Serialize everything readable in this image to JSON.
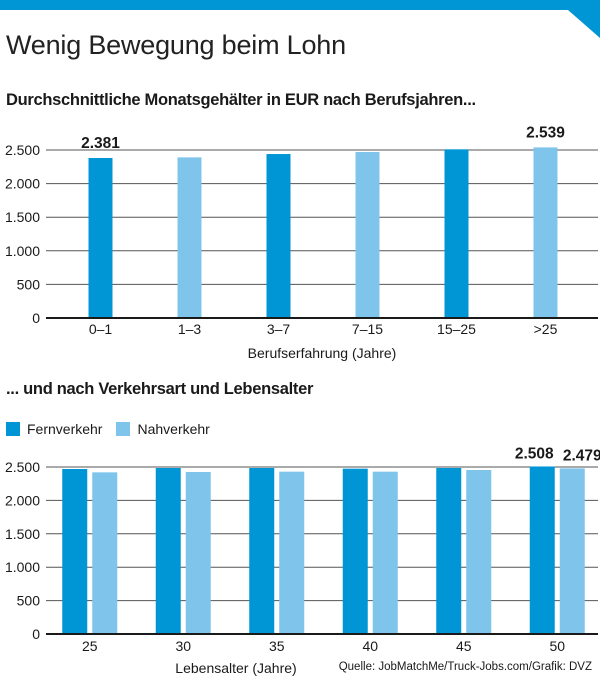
{
  "header": {
    "title": "Wenig Bewegung beim Lohn",
    "accent_color": "#0096d6"
  },
  "colors": {
    "dark_blue": "#0096d6",
    "light_blue": "#7fc4ea",
    "axis": "#1a1a1a"
  },
  "chart_data": [
    {
      "type": "bar",
      "title": "Durchschnittliche Monatsgehälter in EUR nach Berufsjahren...",
      "categories": [
        "0–1",
        "1–3",
        "3–7",
        "7–15",
        "15–25",
        ">25"
      ],
      "values": [
        2381,
        2390,
        2440,
        2470,
        2510,
        2539
      ],
      "bar_colors": [
        "dark",
        "light",
        "dark",
        "light",
        "dark",
        "light"
      ],
      "data_labels": [
        {
          "index": 0,
          "text": "2.381"
        },
        {
          "index": 5,
          "text": "2.539"
        }
      ],
      "xlabel": "Berufserfahrung (Jahre)",
      "ylabel": "",
      "ylim": [
        0,
        2700
      ],
      "yticks": [
        0,
        500,
        1000,
        1500,
        2000,
        2500
      ],
      "ytick_labels": [
        "0",
        "500",
        "1.000",
        "1.500",
        "2.000",
        "2.500"
      ],
      "grid": true
    },
    {
      "type": "bar",
      "title": "... und nach Verkehrsart und Lebensalter",
      "categories": [
        "25",
        "30",
        "35",
        "40",
        "45",
        "50"
      ],
      "series": [
        {
          "name": "Fernverkehr",
          "color": "dark",
          "values": [
            2470,
            2485,
            2485,
            2475,
            2485,
            2508
          ]
        },
        {
          "name": "Nahverkehr",
          "color": "light",
          "values": [
            2420,
            2425,
            2430,
            2430,
            2455,
            2479
          ]
        }
      ],
      "data_labels": [
        {
          "series": 0,
          "index": 5,
          "text": "2.508"
        },
        {
          "series": 1,
          "index": 5,
          "text": "2.479"
        }
      ],
      "xlabel": "Lebensalter (Jahre)",
      "ylabel": "",
      "ylim": [
        0,
        2600
      ],
      "yticks": [
        0,
        500,
        1000,
        1500,
        2000,
        2500
      ],
      "ytick_labels": [
        "0",
        "500",
        "1.000",
        "1.500",
        "2.000",
        "2.500"
      ],
      "grid": true,
      "legend": "top-left"
    }
  ],
  "source": "Quelle: JobMatchMe/Truck-Jobs.com/Grafik: DVZ"
}
